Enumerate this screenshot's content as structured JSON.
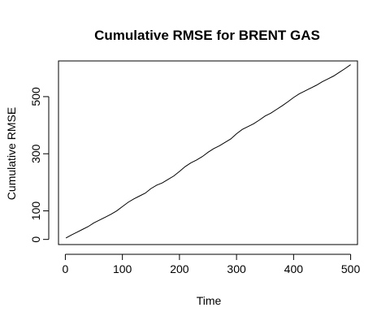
{
  "chart_data": {
    "type": "line",
    "title": "Cumulative RMSE for BRENT GAS",
    "xlabel": "Time",
    "ylabel": "Cumulative RMSE",
    "xlim": [
      -12,
      512
    ],
    "ylim": [
      -18,
      625
    ],
    "xticks": [
      0,
      100,
      200,
      300,
      400,
      500
    ],
    "yticks": [
      0,
      100,
      300,
      500
    ],
    "grid": false,
    "legend": "none",
    "line_color": "#000000",
    "series": [
      {
        "x": [
          1,
          10,
          20,
          30,
          40,
          50,
          60,
          70,
          80,
          90,
          100,
          110,
          120,
          130,
          140,
          150,
          160,
          170,
          180,
          190,
          200,
          210,
          220,
          230,
          240,
          250,
          260,
          270,
          280,
          290,
          300,
          310,
          320,
          330,
          340,
          350,
          360,
          370,
          380,
          390,
          400,
          410,
          420,
          430,
          440,
          450,
          460,
          470,
          480,
          490,
          500
        ],
        "y": [
          5,
          15,
          25,
          35,
          45,
          58,
          68,
          78,
          88,
          100,
          115,
          130,
          142,
          152,
          162,
          178,
          190,
          198,
          210,
          222,
          238,
          255,
          268,
          278,
          290,
          305,
          318,
          328,
          340,
          352,
          370,
          385,
          395,
          405,
          418,
          432,
          442,
          455,
          468,
          482,
          497,
          510,
          520,
          530,
          540,
          552,
          562,
          572,
          585,
          598,
          612
        ]
      }
    ]
  }
}
